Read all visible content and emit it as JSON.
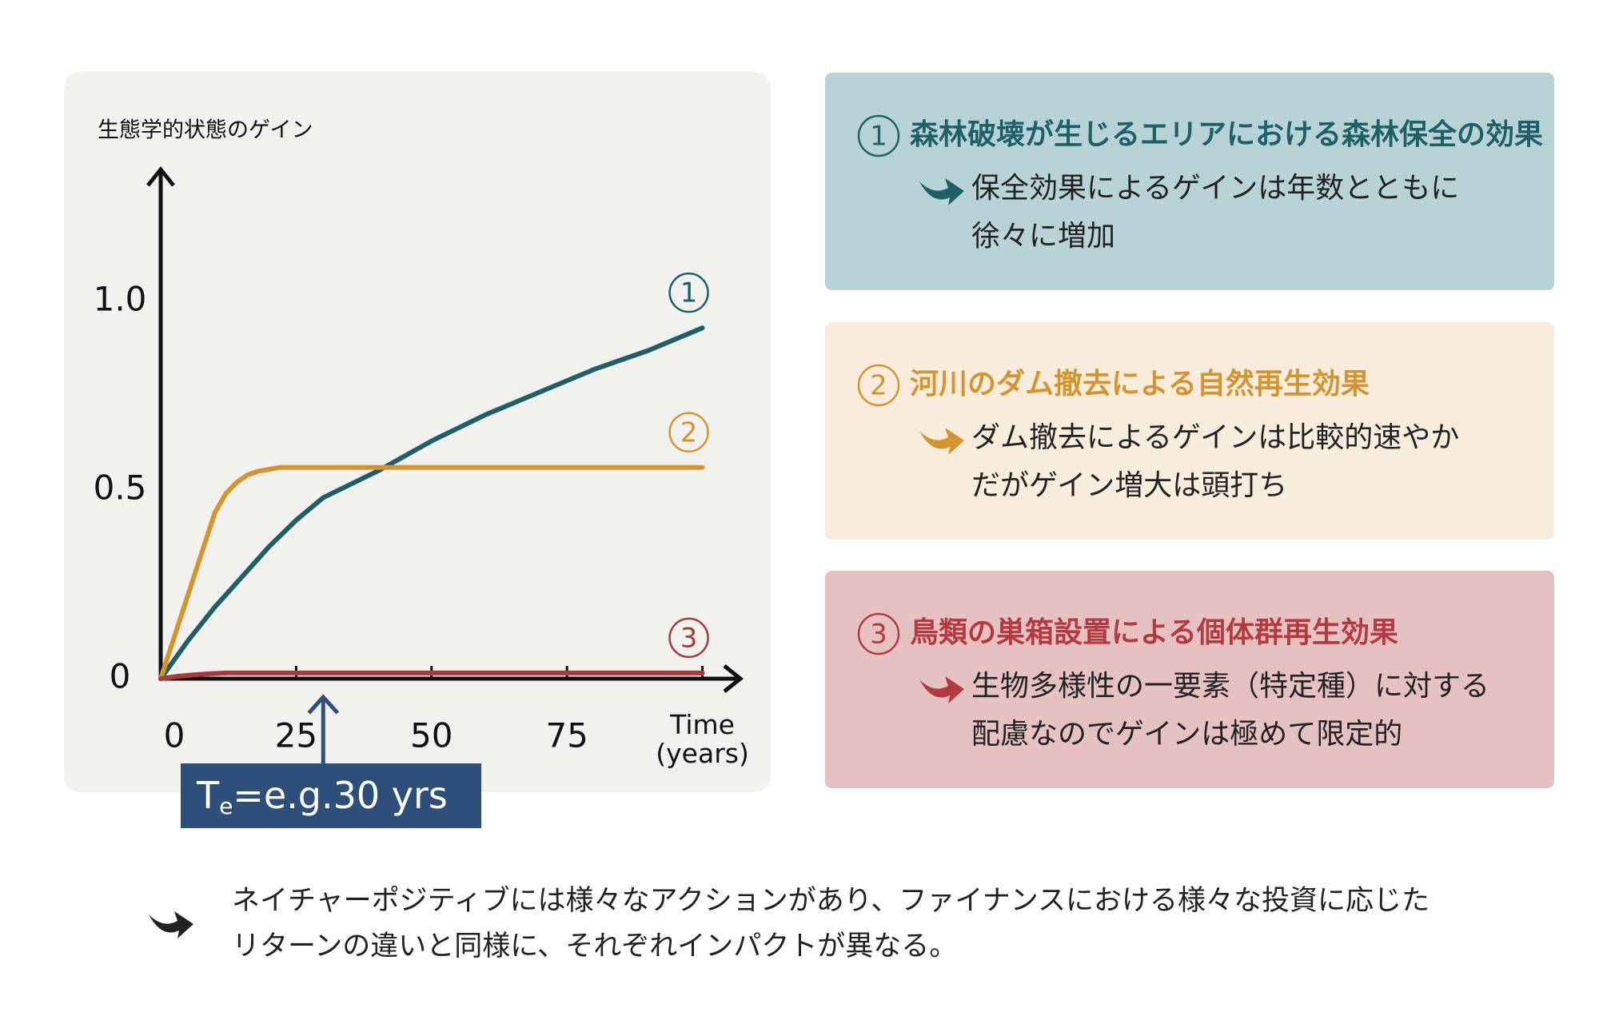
{
  "chart_data": {
    "type": "line",
    "y_label": "生態学的状態のゲイン",
    "xlim": [
      0,
      107
    ],
    "ylim": [
      0,
      1.35
    ],
    "xticks": [
      0,
      25,
      50,
      75,
      {
        "value": 100,
        "label": "Time\n(years)"
      }
    ],
    "yticks": [
      0,
      0.5,
      {
        "value": 1,
        "label": "1.0"
      }
    ],
    "series": [
      {
        "name": "1",
        "color": "#1f5f66",
        "x": [
          0,
          5,
          10,
          15,
          20,
          25,
          30,
          40,
          50,
          60,
          70,
          80,
          90,
          100
        ],
        "values": [
          0,
          0.1,
          0.19,
          0.27,
          0.35,
          0.42,
          0.48,
          0.55,
          0.63,
          0.7,
          0.76,
          0.82,
          0.87,
          0.93
        ]
      },
      {
        "name": "2",
        "color": "#d4952e",
        "x": [
          0,
          5,
          10,
          12,
          14,
          16,
          18,
          20,
          22,
          100
        ],
        "values": [
          0,
          0.22,
          0.44,
          0.49,
          0.52,
          0.54,
          0.55,
          0.555,
          0.56,
          0.56
        ]
      },
      {
        "name": "3",
        "color": "#a83a3e",
        "x": [
          0,
          3,
          6,
          9,
          12,
          100
        ],
        "values": [
          0,
          0.006,
          0.01,
          0.013,
          0.015,
          0.015
        ]
      }
    ],
    "annotation": {
      "text": "T",
      "subscript": "e",
      "suffix": "=e.g.30 yrs",
      "x": 30,
      "color": "#2d4f7a"
    }
  },
  "panels": [
    {
      "number": "1",
      "title": "森林破壊が生じるエリアにおける森林保全の効果",
      "lines": [
        "保全効果によるゲインは年数とともに",
        "徐々に増加"
      ],
      "color": "#1f5f66",
      "background": "#b7d3d8"
    },
    {
      "number": "2",
      "title": "河川のダム撤去による自然再生効果",
      "lines": [
        "ダム撤去によるゲインは比較的速やか",
        "だがゲイン増大は頭打ち"
      ],
      "color": "#d4952e",
      "background": "#f8ecdd"
    },
    {
      "number": "3",
      "title": "鳥類の巣箱設置による個体群再生効果",
      "lines": [
        "生物多様性の一要素（特定種）に対する",
        "配慮なのでゲインは極めて限定的"
      ],
      "color": "#b33a40",
      "background": "#e6c1c2"
    }
  ],
  "footer": {
    "lines": [
      "ネイチャーポジティブには様々なアクションがあり、ファイナンスにおける様々な投資に応じた",
      "リターンの違いと同様に、それぞれインパクトが異なる。"
    ]
  }
}
